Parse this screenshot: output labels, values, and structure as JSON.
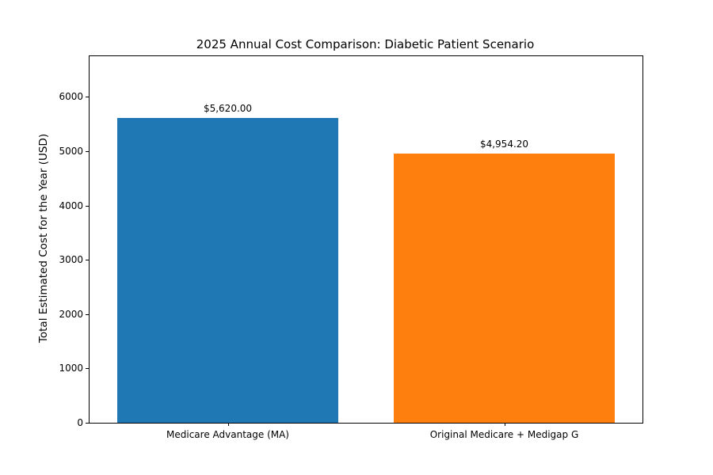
{
  "chart_data": {
    "type": "bar",
    "title": "2025 Annual Cost Comparison: Diabetic Patient Scenario",
    "xlabel": "",
    "ylabel": "Total Estimated Cost for the Year (USD)",
    "categories": [
      "Medicare Advantage (MA)",
      "Original Medicare + Medigap G"
    ],
    "values": [
      5620.0,
      4954.2
    ],
    "value_labels": [
      "$5,620.00",
      "$4,954.20"
    ],
    "bar_colors": [
      "#1f77b4",
      "#ff7f0e"
    ],
    "yticks": [
      0,
      1000,
      2000,
      3000,
      4000,
      5000,
      6000
    ],
    "ylim": [
      0,
      6750
    ],
    "grid": false,
    "legend": "none",
    "background_color": "#ffffff",
    "spine_color": "#000000"
  }
}
